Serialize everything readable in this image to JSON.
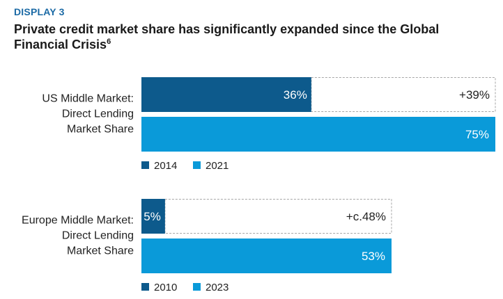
{
  "display_label": "DISPLAY 3",
  "title": "Private credit market share has significantly expanded since the Global Financial Crisis",
  "title_note": "6",
  "colors": {
    "early": "#0d5a8c",
    "late": "#0a9ad9",
    "growth_border": "#a6a6a6",
    "text": "#222222"
  },
  "chart_data": [
    {
      "type": "bar",
      "orientation": "horizontal",
      "category_label": [
        "US Middle Market:",
        "Direct Lending",
        "Market Share"
      ],
      "series": [
        {
          "name": "2014",
          "value": 36,
          "label": "36%",
          "color": "#0d5a8c"
        },
        {
          "name": "2021",
          "value": 75,
          "label": "75%",
          "color": "#0a9ad9"
        }
      ],
      "growth_annotation": "+39%",
      "xlim": [
        0,
        75
      ]
    },
    {
      "type": "bar",
      "orientation": "horizontal",
      "category_label": [
        "Europe Middle Market:",
        "Direct Lending",
        "Market Share"
      ],
      "series": [
        {
          "name": "2010",
          "value": 5,
          "label": "5%",
          "color": "#0d5a8c"
        },
        {
          "name": "2023",
          "value": 53,
          "label": "53%",
          "color": "#0a9ad9"
        }
      ],
      "growth_annotation": "+c.48%",
      "xlim": [
        0,
        75
      ]
    }
  ]
}
